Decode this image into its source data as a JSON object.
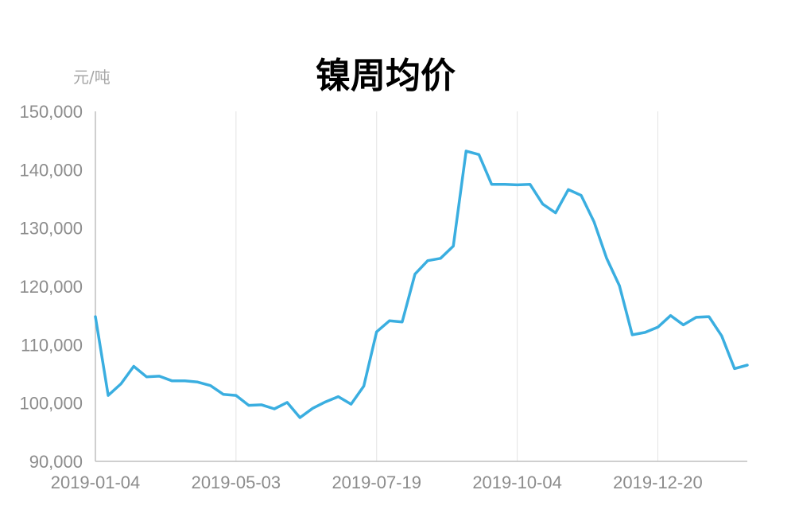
{
  "chart_data": {
    "type": "line",
    "title": "镍周均价",
    "ylabel": "元/吨",
    "xlabel": "",
    "ylim": [
      90000,
      150000
    ],
    "y_ticks": [
      "90,000",
      "100,000",
      "110,000",
      "120,000",
      "130,000",
      "140,000",
      "150,000"
    ],
    "x_tick_labels": [
      "2019-01-04",
      "2019-05-03",
      "2019-07-19",
      "2019-10-04",
      "2019-12-20"
    ],
    "x_tick_indices": [
      0,
      11,
      22,
      33,
      44
    ],
    "grid": "vertical",
    "series": [
      {
        "color": "#3aaee0",
        "values": [
          114800,
          101300,
          103300,
          106300,
          104500,
          104600,
          103800,
          103800,
          103600,
          103000,
          101500,
          101300,
          99600,
          99700,
          99000,
          100100,
          97500,
          99100,
          100200,
          101100,
          99800,
          102900,
          112200,
          114100,
          113900,
          122100,
          124400,
          124800,
          126900,
          143200,
          142600,
          137500,
          137500,
          137400,
          137500,
          134100,
          132600,
          136600,
          135600,
          131100,
          124800,
          120100,
          111700,
          112100,
          113000,
          115000,
          113400,
          114700,
          114800,
          111500,
          105900,
          106500
        ]
      }
    ]
  }
}
